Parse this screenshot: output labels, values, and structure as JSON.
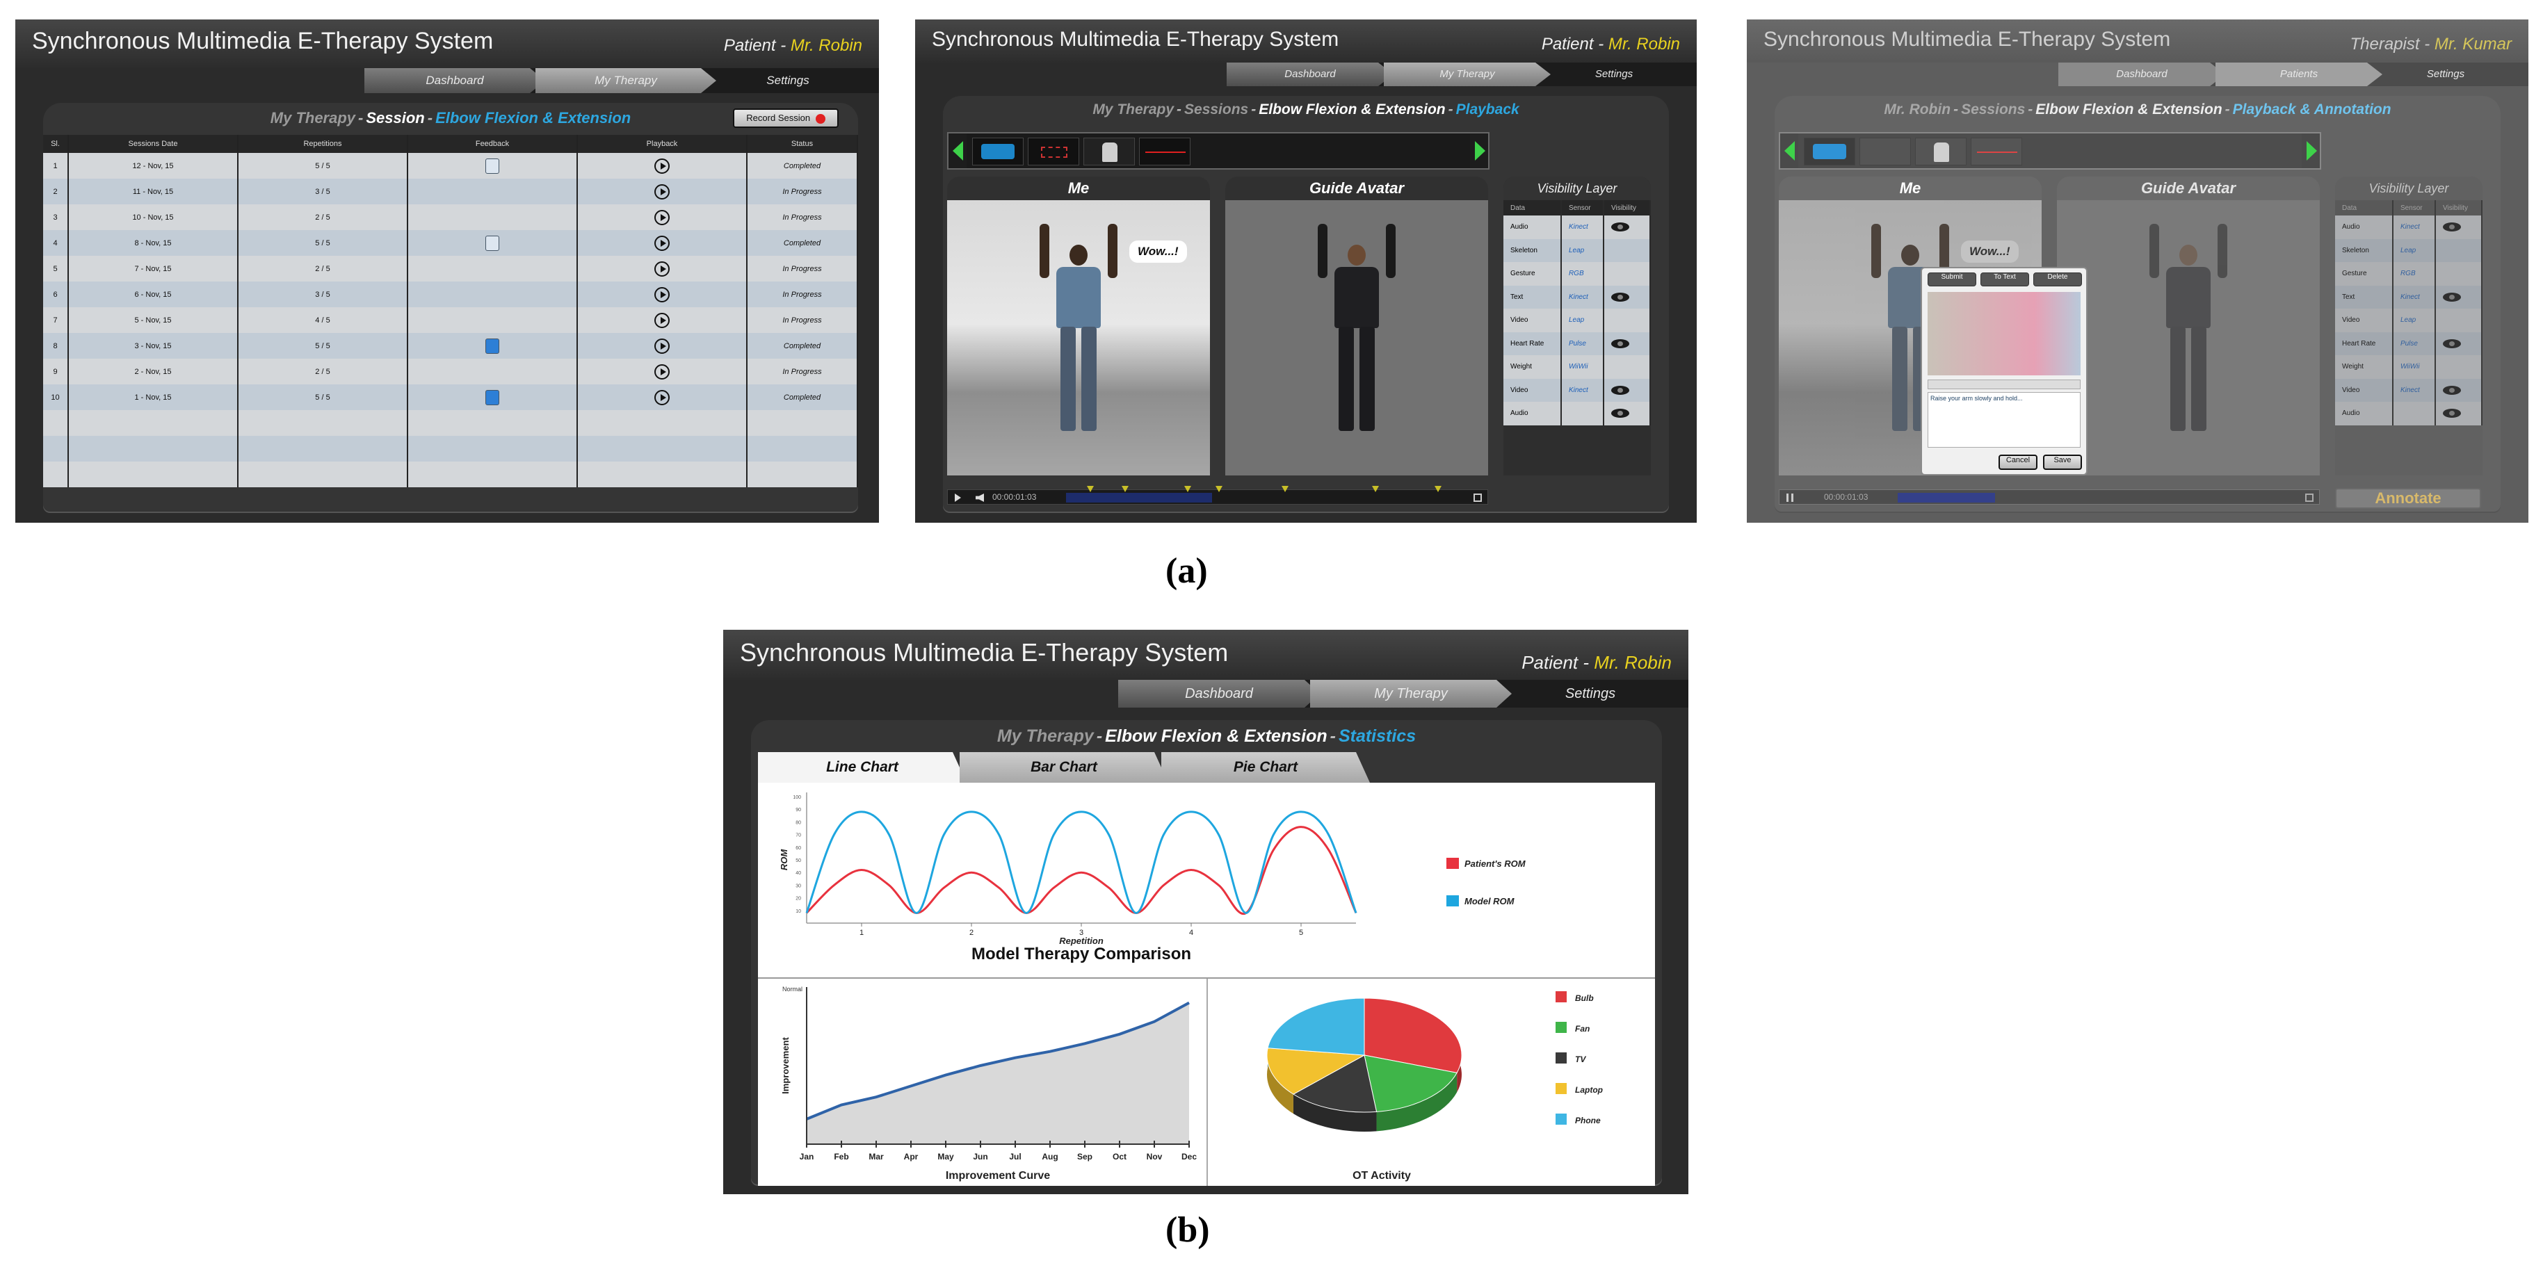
{
  "app_title": "Synchronous Multimedia E-Therapy System",
  "nav": {
    "dashboard": "Dashboard",
    "my_therapy": "My Therapy",
    "settings": "Settings",
    "patients": "Patients"
  },
  "panel1": {
    "user_role": "Patient",
    "user_name": "Mr. Robin",
    "header": {
      "section": "My Therapy",
      "sub": "Session",
      "exercise": "Elbow Flexion & Extension"
    },
    "record_button": "Record Session",
    "columns": [
      "Sl.",
      "Sessions Date",
      "Repetitions",
      "Feedback",
      "Playback",
      "Status"
    ],
    "rows": [
      {
        "sl": "1",
        "date": "12 - Nov, 15",
        "reps": "5 / 5",
        "feedback": "doc",
        "status": "Completed"
      },
      {
        "sl": "2",
        "date": "11 - Nov, 15",
        "reps": "3 / 5",
        "feedback": "",
        "status": "In Progress"
      },
      {
        "sl": "3",
        "date": "10 - Nov, 15",
        "reps": "2 / 5",
        "feedback": "",
        "status": "In Progress"
      },
      {
        "sl": "4",
        "date": "8 - Nov, 15",
        "reps": "5 / 5",
        "feedback": "doc",
        "status": "Completed"
      },
      {
        "sl": "5",
        "date": "7 - Nov, 15",
        "reps": "2 / 5",
        "feedback": "",
        "status": "In Progress"
      },
      {
        "sl": "6",
        "date": "6 - Nov, 15",
        "reps": "3 / 5",
        "feedback": "",
        "status": "In Progress"
      },
      {
        "sl": "7",
        "date": "5 - Nov, 15",
        "reps": "4 / 5",
        "feedback": "",
        "status": "In Progress"
      },
      {
        "sl": "8",
        "date": "3 - Nov, 15",
        "reps": "5 / 5",
        "feedback": "blue",
        "status": "Completed"
      },
      {
        "sl": "9",
        "date": "2 - Nov, 15",
        "reps": "2 / 5",
        "feedback": "",
        "status": "In Progress"
      },
      {
        "sl": "10",
        "date": "1 - Nov, 15",
        "reps": "5 / 5",
        "feedback": "blue",
        "status": "Completed"
      }
    ]
  },
  "panel2": {
    "user_role": "Patient",
    "user_name": "Mr. Robin",
    "header": {
      "section": "My Therapy",
      "sub": "Sessions",
      "exercise": "Elbow Flexion & Extension",
      "mode": "Playback"
    },
    "me_label": "Me",
    "guide_label": "Guide Avatar",
    "bubble": "Wow...!",
    "visibility_title": "Visibility Layer",
    "vis_columns": [
      "Data",
      "Sensor",
      "Visibility"
    ],
    "vis_rows": [
      {
        "data": "Audio",
        "sensor": "Kinect",
        "eye": true
      },
      {
        "data": "Skeleton",
        "sensor": "Leap",
        "eye": false
      },
      {
        "data": "Gesture",
        "sensor": "RGB",
        "eye": false
      },
      {
        "data": "Text",
        "sensor": "Kinect",
        "eye": true
      },
      {
        "data": "Video",
        "sensor": "Leap",
        "eye": false
      },
      {
        "data": "Heart Rate",
        "sensor": "Pulse",
        "eye": true
      },
      {
        "data": "Weight",
        "sensor": "WiiWii",
        "eye": false
      },
      {
        "data": "Video",
        "sensor": "Kinect",
        "eye": true
      },
      {
        "data": "Audio",
        "sensor": "",
        "eye": true
      }
    ],
    "time": "00:00:01:03"
  },
  "panel3": {
    "user_role": "Therapist",
    "user_name": "Mr. Kumar",
    "header": {
      "section": "Mr. Robin",
      "sub": "Sessions",
      "exercise": "Elbow Flexion & Extension",
      "mode": "Playback & Annotation"
    },
    "annotate_button": "Annotate",
    "dialog": {
      "buttons": [
        "Submit",
        "To Text",
        "Delete"
      ],
      "text": "Raise your arm slowly and hold...",
      "cancel": "Cancel",
      "save": "Save"
    }
  },
  "panel4": {
    "user_role": "Patient",
    "user_name": "Mr. Robin",
    "header": {
      "section": "My Therapy",
      "exercise": "Elbow Flexion & Extension",
      "mode": "Statistics"
    },
    "tabs": [
      "Line Chart",
      "Bar Chart",
      "Pie Chart"
    ]
  },
  "captions": {
    "a": "(a)",
    "b": "(b)"
  },
  "chart_data": [
    {
      "type": "line",
      "title": "Model Therapy Comparison",
      "xlabel": "Repetition",
      "ylabel": "ROM",
      "x": [
        0.5,
        0.75,
        1,
        1.25,
        1.5,
        1.75,
        2,
        2.25,
        2.5,
        2.75,
        3,
        3.25,
        3.5,
        3.75,
        4,
        4.25,
        4.5,
        4.75,
        5,
        5.25,
        5.5
      ],
      "x_ticks": [
        "1",
        "2",
        "3",
        "4",
        "5"
      ],
      "ylim": [
        0,
        100
      ],
      "y_ticks": [
        "100",
        "90",
        "80",
        "70",
        "60",
        "50",
        "40",
        "30",
        "20",
        "10"
      ],
      "series": [
        {
          "name": "Patient's ROM",
          "color": "#e8323e",
          "values": [
            8,
            30,
            42,
            30,
            8,
            28,
            40,
            28,
            8,
            28,
            40,
            28,
            8,
            30,
            42,
            30,
            8,
            58,
            76,
            58,
            8
          ]
        },
        {
          "name": "Model ROM",
          "color": "#1ea6df",
          "values": [
            8,
            70,
            88,
            70,
            8,
            70,
            88,
            70,
            8,
            70,
            88,
            70,
            8,
            70,
            88,
            70,
            8,
            70,
            88,
            70,
            8
          ]
        }
      ]
    },
    {
      "type": "area",
      "title": "Improvement Curve",
      "ylabel": "Improvement",
      "y_top_label": "Normal",
      "categories": [
        "Jan",
        "Feb",
        "Mar",
        "Apr",
        "May",
        "Jun",
        "Jul",
        "Aug",
        "Sep",
        "Oct",
        "Nov",
        "Dec"
      ],
      "values": [
        16,
        25,
        30,
        37,
        44,
        50,
        55,
        59,
        64,
        70,
        78,
        90
      ],
      "ylim": [
        0,
        100
      ],
      "color": "#2f63a8"
    },
    {
      "type": "pie",
      "title": "OT Activity",
      "series": [
        {
          "name": "Bulb",
          "color": "#e03a3e",
          "value": 30
        },
        {
          "name": "Fan",
          "color": "#3fb549",
          "value": 18
        },
        {
          "name": "TV",
          "color": "#3a3a3a",
          "value": 15
        },
        {
          "name": "Laptop",
          "color": "#f2c12e",
          "value": 14
        },
        {
          "name": "Phone",
          "color": "#3fb6e3",
          "value": 23
        }
      ]
    }
  ]
}
